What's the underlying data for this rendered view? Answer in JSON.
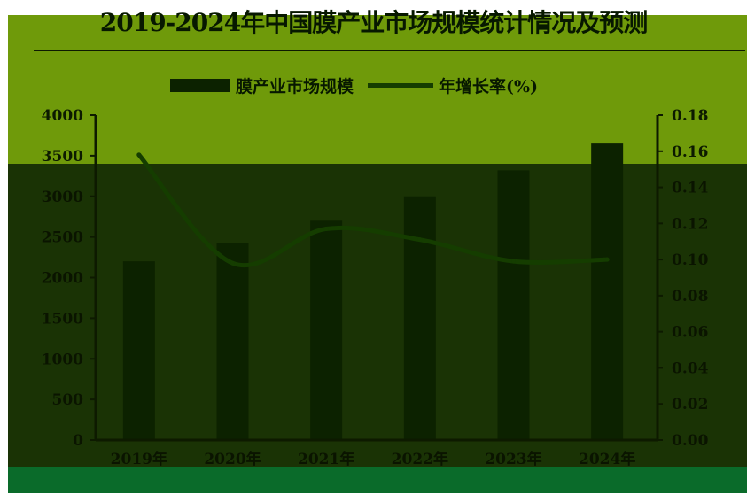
{
  "chart_data": {
    "type": "bar",
    "title": "2019-2024年中国膜产业市场规模统计情况及预测",
    "categories": [
      "2019年",
      "2020年",
      "2021年",
      "2022年",
      "2023年",
      "2024年"
    ],
    "series": [
      {
        "name": "膜产业市场规模",
        "type": "bar",
        "axis": "left",
        "values": [
          2200,
          2420,
          2700,
          3000,
          3320,
          3650
        ]
      },
      {
        "name": "年增长率(%)",
        "type": "line",
        "axis": "right",
        "values": [
          0.158,
          0.098,
          0.117,
          0.111,
          0.099,
          0.1
        ]
      }
    ],
    "ylim": [
      0,
      4000
    ],
    "yticks": [
      "0",
      "500",
      "1000",
      "1500",
      "2000",
      "2500",
      "3000",
      "3500",
      "4000"
    ],
    "y2lim": [
      0,
      0.18
    ],
    "y2ticks": [
      "0.00",
      "0.02",
      "0.04",
      "0.06",
      "0.08",
      "0.10",
      "0.12",
      "0.14",
      "0.16",
      "0.18"
    ],
    "legend": "top",
    "grid": false,
    "colors": {
      "bar": "#0c2200",
      "line": "#153d00",
      "axis": "#0d1a00",
      "tick_on_light": "#0c1a00",
      "tick_on_dark": "#0a1400",
      "panel_top": "#6f9a0a",
      "panel_bottom": "#1a3305",
      "panel_strip": "#0a6b2a"
    }
  }
}
